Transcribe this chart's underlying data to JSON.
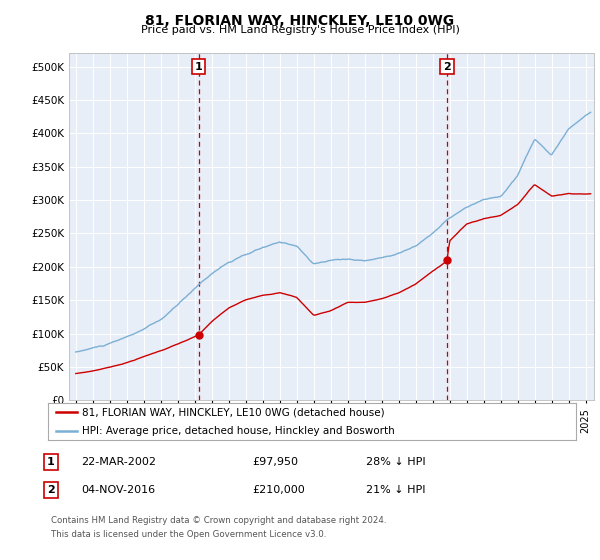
{
  "title": "81, FLORIAN WAY, HINCKLEY, LE10 0WG",
  "subtitle": "Price paid vs. HM Land Registry's House Price Index (HPI)",
  "ylabel_ticks": [
    "£0",
    "£50K",
    "£100K",
    "£150K",
    "£200K",
    "£250K",
    "£300K",
    "£350K",
    "£400K",
    "£450K",
    "£500K"
  ],
  "ytick_values": [
    0,
    50000,
    100000,
    150000,
    200000,
    250000,
    300000,
    350000,
    400000,
    450000,
    500000
  ],
  "ylim": [
    0,
    520000
  ],
  "xlim_start": 1994.6,
  "xlim_end": 2025.5,
  "sale1_year": 2002.23,
  "sale1_price": 97950,
  "sale1_label": "1",
  "sale1_date": "22-MAR-2002",
  "sale1_price_str": "£97,950",
  "sale1_pct": "28% ↓ HPI",
  "sale2_year": 2016.84,
  "sale2_price": 210000,
  "sale2_label": "2",
  "sale2_date": "04-NOV-2016",
  "sale2_price_str": "£210,000",
  "sale2_pct": "21% ↓ HPI",
  "legend_property": "81, FLORIAN WAY, HINCKLEY, LE10 0WG (detached house)",
  "legend_hpi": "HPI: Average price, detached house, Hinckley and Bosworth",
  "property_color": "#cc0000",
  "hpi_color": "#7bafd4",
  "vline_color": "#cc0000",
  "footer_line1": "Contains HM Land Registry data © Crown copyright and database right 2024.",
  "footer_line2": "This data is licensed under the Open Government Licence v3.0.",
  "background_color": "#e8eef8",
  "grid_color": "#ffffff"
}
